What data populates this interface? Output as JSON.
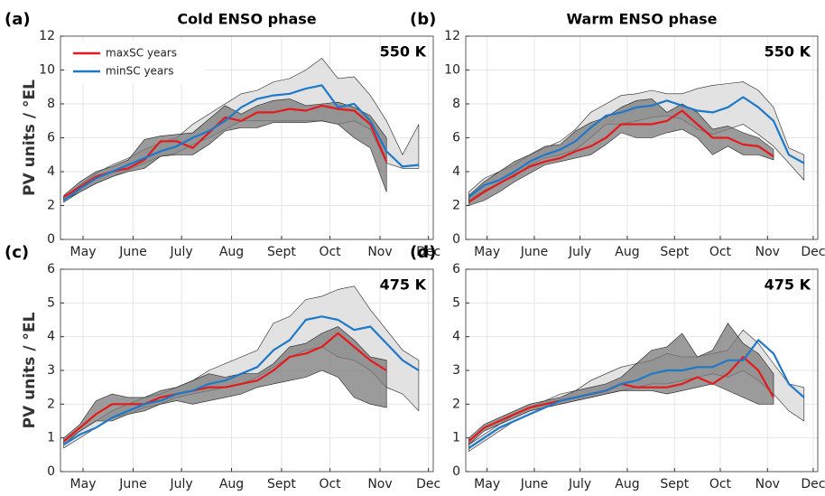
{
  "chart_data": [
    {
      "type": "line",
      "panel_label": "(a)",
      "title": "Cold ENSO phase",
      "annotation": "550 K",
      "ylabel": "PV units / °EL",
      "legend": true,
      "x": [
        3,
        13,
        23,
        33,
        43,
        53,
        63,
        73,
        83,
        93,
        103,
        113,
        123,
        133,
        143,
        153,
        163,
        173,
        183,
        193,
        203,
        213,
        223,
        233
      ],
      "xlim": [
        1,
        232
      ],
      "xticks": [
        {
          "value": 15,
          "label": "May"
        },
        {
          "value": 46,
          "label": "June"
        },
        {
          "value": 76,
          "label": "July"
        },
        {
          "value": 107,
          "label": "Aug"
        },
        {
          "value": 138,
          "label": "Sept"
        },
        {
          "value": 168,
          "label": "Oct"
        },
        {
          "value": 199,
          "label": "Nov"
        },
        {
          "value": 229,
          "label": "Dec"
        }
      ],
      "ylim": [
        0,
        12
      ],
      "yticks": [
        0,
        2,
        4,
        6,
        8,
        10,
        12
      ],
      "grid": true,
      "bands": [
        {
          "color": "#e2e2e2",
          "lower": [
            2.2,
            2.8,
            3.3,
            3.7,
            4.1,
            4.5,
            4.9,
            5.1,
            5.6,
            6.0,
            6.5,
            7.0,
            7.0,
            7.0,
            7.0,
            7.0,
            7.0,
            6.8,
            7.0,
            6.5,
            4.5,
            4.2,
            4.2,
            null
          ],
          "upper": [
            2.5,
            3.2,
            3.9,
            4.4,
            4.8,
            5.3,
            5.7,
            6.0,
            6.8,
            7.4,
            8.0,
            8.6,
            8.8,
            9.3,
            9.5,
            10.0,
            10.7,
            9.5,
            9.6,
            8.5,
            7.0,
            5.0,
            6.8,
            null
          ]
        },
        {
          "color": "#7a7a7a",
          "lower": [
            2.3,
            2.8,
            3.3,
            3.7,
            4.0,
            4.2,
            4.9,
            5.0,
            5.0,
            5.6,
            6.4,
            6.6,
            6.6,
            6.9,
            6.9,
            6.9,
            7.0,
            6.8,
            6.0,
            5.4,
            2.8,
            null,
            null,
            null
          ],
          "upper": [
            2.6,
            3.4,
            4.0,
            4.3,
            4.7,
            5.9,
            6.1,
            6.2,
            6.3,
            7.1,
            7.9,
            7.4,
            7.9,
            8.2,
            8.3,
            7.9,
            8.0,
            8.1,
            7.8,
            7.3,
            6.0,
            null,
            null,
            null
          ]
        }
      ],
      "series": [
        {
          "name": "maxSC years",
          "color": "#e41a1c",
          "values": [
            2.5,
            3.1,
            3.7,
            4.0,
            4.2,
            4.7,
            5.8,
            5.8,
            5.4,
            6.3,
            7.2,
            7.0,
            7.5,
            7.5,
            7.7,
            7.6,
            7.9,
            7.7,
            7.6,
            6.8,
            4.6,
            null,
            null,
            null
          ]
        },
        {
          "name": "minSC years",
          "color": "#1f78c8",
          "values": [
            2.3,
            3.0,
            3.6,
            4.0,
            4.4,
            4.8,
            5.2,
            5.5,
            6.0,
            6.4,
            7.0,
            7.8,
            8.3,
            8.5,
            8.6,
            8.9,
            9.1,
            7.8,
            8.0,
            7.0,
            5.2,
            4.3,
            4.4,
            null
          ]
        }
      ]
    },
    {
      "type": "line",
      "panel_label": "(b)",
      "title": "Warm ENSO phase",
      "annotation": "550 K",
      "x": [
        3,
        13,
        23,
        33,
        43,
        53,
        63,
        73,
        83,
        93,
        103,
        113,
        123,
        133,
        143,
        153,
        163,
        173,
        183,
        193,
        203,
        213,
        223,
        233
      ],
      "xlim": [
        1,
        232
      ],
      "xticks": [
        {
          "value": 15,
          "label": "May"
        },
        {
          "value": 46,
          "label": "June"
        },
        {
          "value": 76,
          "label": "July"
        },
        {
          "value": 107,
          "label": "Aug"
        },
        {
          "value": 138,
          "label": "Sept"
        },
        {
          "value": 168,
          "label": "Oct"
        },
        {
          "value": 199,
          "label": "Nov"
        },
        {
          "value": 229,
          "label": "Dec"
        }
      ],
      "ylim": [
        0,
        12
      ],
      "yticks": [
        0,
        2,
        4,
        6,
        8,
        10,
        12
      ],
      "grid": true,
      "bands": [
        {
          "color": "#e2e2e2",
          "lower": [
            2.3,
            2.9,
            3.3,
            3.7,
            4.4,
            4.8,
            5.0,
            5.3,
            6.0,
            6.8,
            6.8,
            7.0,
            7.2,
            7.3,
            7.1,
            6.5,
            6.2,
            6.5,
            6.8,
            6.2,
            5.5,
            4.5,
            3.5,
            null
          ],
          "upper": [
            2.8,
            3.6,
            4.0,
            4.4,
            5.0,
            5.4,
            5.8,
            6.5,
            7.5,
            8.0,
            8.5,
            8.6,
            8.8,
            8.6,
            8.6,
            8.9,
            9.1,
            9.2,
            9.3,
            8.8,
            7.8,
            5.4,
            5.0,
            null
          ]
        },
        {
          "color": "#7a7a7a",
          "lower": [
            2.0,
            2.3,
            2.8,
            3.4,
            3.9,
            4.4,
            4.6,
            4.8,
            5.0,
            5.6,
            6.3,
            6.0,
            6.0,
            6.3,
            6.5,
            6.0,
            5.0,
            5.5,
            5.0,
            5.0,
            4.7,
            null,
            null,
            null
          ],
          "upper": [
            2.6,
            3.4,
            4.0,
            4.6,
            5.0,
            5.5,
            5.6,
            6.4,
            6.9,
            7.2,
            7.8,
            8.2,
            8.3,
            7.5,
            8.0,
            7.5,
            6.5,
            6.7,
            6.3,
            6.0,
            5.3,
            null,
            null,
            null
          ]
        }
      ],
      "series": [
        {
          "color": "#e41a1c",
          "values": [
            2.2,
            2.8,
            3.3,
            3.8,
            4.3,
            4.6,
            4.8,
            5.2,
            5.5,
            6.0,
            6.8,
            6.8,
            6.8,
            7.0,
            7.6,
            6.8,
            6.0,
            6.0,
            5.6,
            5.5,
            4.9,
            null,
            null,
            null
          ]
        },
        {
          "color": "#1f78c8",
          "values": [
            2.5,
            3.2,
            3.5,
            4.0,
            4.6,
            5.0,
            5.3,
            5.8,
            6.6,
            7.3,
            7.5,
            7.8,
            7.9,
            8.2,
            7.9,
            7.6,
            7.5,
            7.8,
            8.4,
            7.8,
            7.0,
            5.0,
            4.5,
            null
          ]
        }
      ]
    },
    {
      "type": "line",
      "panel_label": "(c)",
      "annotation": "475 K",
      "ylabel": "PV units / °EL",
      "x": [
        3,
        13,
        23,
        33,
        43,
        53,
        63,
        73,
        83,
        93,
        103,
        113,
        123,
        133,
        143,
        153,
        163,
        173,
        183,
        193,
        203,
        213,
        223,
        233
      ],
      "xlim": [
        1,
        232
      ],
      "xticks": [
        {
          "value": 15,
          "label": "May"
        },
        {
          "value": 46,
          "label": "June"
        },
        {
          "value": 76,
          "label": "July"
        },
        {
          "value": 107,
          "label": "Aug"
        },
        {
          "value": 138,
          "label": "Sept"
        },
        {
          "value": 168,
          "label": "Oct"
        },
        {
          "value": 199,
          "label": "Nov"
        },
        {
          "value": 229,
          "label": "Dec"
        }
      ],
      "ylim": [
        0,
        6
      ],
      "yticks": [
        0,
        1,
        2,
        3,
        4,
        5,
        6
      ],
      "grid": true,
      "bands": [
        {
          "color": "#e2e2e2",
          "lower": [
            0.7,
            1.0,
            1.3,
            1.6,
            1.7,
            1.9,
            2.0,
            2.2,
            2.3,
            2.4,
            2.5,
            2.6,
            2.8,
            3.1,
            3.4,
            3.6,
            3.7,
            3.4,
            3.3,
            3.0,
            2.5,
            2.3,
            1.8,
            null
          ],
          "upper": [
            0.9,
            1.2,
            1.5,
            1.8,
            2.0,
            2.2,
            2.3,
            2.5,
            2.7,
            3.0,
            3.2,
            3.4,
            3.6,
            4.4,
            4.6,
            5.1,
            5.2,
            5.4,
            5.5,
            4.8,
            4.2,
            3.6,
            3.3,
            null
          ]
        },
        {
          "color": "#7a7a7a",
          "lower": [
            0.8,
            1.2,
            1.5,
            1.5,
            1.7,
            1.8,
            2.0,
            2.1,
            2.0,
            2.1,
            2.2,
            2.3,
            2.5,
            2.6,
            2.7,
            2.8,
            3.0,
            2.8,
            2.2,
            2.0,
            1.9,
            null,
            null,
            null
          ],
          "upper": [
            1.0,
            1.4,
            2.1,
            2.3,
            2.2,
            2.2,
            2.4,
            2.5,
            2.7,
            2.9,
            2.8,
            2.9,
            2.9,
            3.2,
            3.7,
            3.8,
            4.1,
            4.3,
            3.9,
            3.4,
            3.3,
            null,
            null,
            null
          ]
        }
      ],
      "series": [
        {
          "color": "#e41a1c",
          "values": [
            0.9,
            1.3,
            1.7,
            2.0,
            2.0,
            2.0,
            2.2,
            2.3,
            2.4,
            2.5,
            2.5,
            2.6,
            2.7,
            3.0,
            3.4,
            3.5,
            3.7,
            4.1,
            3.7,
            3.3,
            3.0,
            null,
            null,
            null
          ]
        },
        {
          "color": "#1f78c8",
          "values": [
            0.8,
            1.1,
            1.3,
            1.6,
            1.8,
            2.0,
            2.1,
            2.3,
            2.4,
            2.6,
            2.7,
            2.9,
            3.1,
            3.6,
            3.9,
            4.5,
            4.6,
            4.5,
            4.2,
            4.3,
            3.8,
            3.3,
            3.0,
            null
          ]
        }
      ]
    },
    {
      "type": "line",
      "panel_label": "(d)",
      "annotation": "475 K",
      "x": [
        3,
        13,
        23,
        33,
        43,
        53,
        63,
        73,
        83,
        93,
        103,
        113,
        123,
        133,
        143,
        153,
        163,
        173,
        183,
        193,
        203,
        213,
        223,
        233
      ],
      "xlim": [
        1,
        232
      ],
      "xticks": [
        {
          "value": 15,
          "label": "May"
        },
        {
          "value": 46,
          "label": "June"
        },
        {
          "value": 76,
          "label": "July"
        },
        {
          "value": 107,
          "label": "Aug"
        },
        {
          "value": 138,
          "label": "Sept"
        },
        {
          "value": 168,
          "label": "Oct"
        },
        {
          "value": 199,
          "label": "Nov"
        },
        {
          "value": 229,
          "label": "Dec"
        }
      ],
      "ylim": [
        0,
        6
      ],
      "yticks": [
        0,
        1,
        2,
        3,
        4,
        5,
        6
      ],
      "grid": true,
      "bands": [
        {
          "color": "#e2e2e2",
          "lower": [
            0.6,
            0.9,
            1.2,
            1.5,
            1.7,
            1.9,
            2.0,
            2.1,
            2.2,
            2.3,
            2.4,
            2.5,
            2.6,
            2.6,
            2.7,
            2.8,
            2.9,
            2.8,
            3.0,
            2.7,
            2.3,
            1.8,
            1.5,
            null
          ],
          "upper": [
            0.8,
            1.1,
            1.4,
            1.7,
            1.9,
            2.1,
            2.3,
            2.4,
            2.7,
            2.9,
            3.1,
            3.2,
            3.3,
            3.5,
            3.4,
            3.4,
            3.5,
            3.6,
            4.2,
            3.8,
            3.2,
            2.6,
            2.5,
            null
          ]
        },
        {
          "color": "#7a7a7a",
          "lower": [
            0.8,
            1.2,
            1.4,
            1.6,
            1.8,
            1.9,
            2.0,
            2.1,
            2.2,
            2.3,
            2.4,
            2.4,
            2.4,
            2.3,
            2.4,
            2.5,
            2.6,
            2.4,
            2.2,
            2.0,
            2.0,
            null,
            null,
            null
          ],
          "upper": [
            1.0,
            1.4,
            1.6,
            1.8,
            2.0,
            2.1,
            2.2,
            2.4,
            2.5,
            2.6,
            2.8,
            3.2,
            3.6,
            3.7,
            4.1,
            3.4,
            3.6,
            4.4,
            3.8,
            3.5,
            2.9,
            null,
            null,
            null
          ]
        }
      ],
      "series": [
        {
          "color": "#e41a1c",
          "values": [
            0.9,
            1.3,
            1.5,
            1.7,
            1.9,
            2.0,
            2.1,
            2.2,
            2.3,
            2.4,
            2.6,
            2.5,
            2.5,
            2.5,
            2.6,
            2.8,
            2.6,
            2.9,
            3.4,
            3.0,
            2.2,
            null,
            null,
            null
          ]
        },
        {
          "color": "#1f78c8",
          "values": [
            0.7,
            1.0,
            1.3,
            1.5,
            1.7,
            1.9,
            2.1,
            2.2,
            2.3,
            2.4,
            2.6,
            2.7,
            2.9,
            3.0,
            3.0,
            3.1,
            3.1,
            3.3,
            3.3,
            3.9,
            3.5,
            2.6,
            2.2,
            null
          ]
        }
      ]
    }
  ]
}
